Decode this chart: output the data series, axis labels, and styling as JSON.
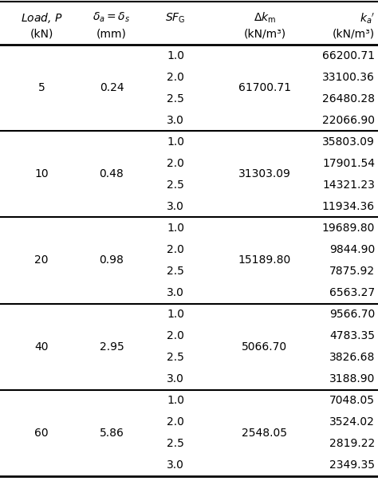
{
  "groups": [
    {
      "load": "5",
      "delta": "0.24",
      "delta_k": "61700.71",
      "sf_values": [
        "1.0",
        "2.0",
        "2.5",
        "3.0"
      ],
      "ka_values": [
        "66200.71",
        "33100.36",
        "26480.28",
        "22066.90"
      ]
    },
    {
      "load": "10",
      "delta": "0.48",
      "delta_k": "31303.09",
      "sf_values": [
        "1.0",
        "2.0",
        "2.5",
        "3.0"
      ],
      "ka_values": [
        "35803.09",
        "17901.54",
        "14321.23",
        "11934.36"
      ]
    },
    {
      "load": "20",
      "delta": "0.98",
      "delta_k": "15189.80",
      "sf_values": [
        "1.0",
        "2.0",
        "2.5",
        "3.0"
      ],
      "ka_values": [
        "19689.80",
        "9844.90",
        "7875.92",
        "6563.27"
      ]
    },
    {
      "load": "40",
      "delta": "2.95",
      "delta_k": "5066.70",
      "sf_values": [
        "1.0",
        "2.0",
        "2.5",
        "3.0"
      ],
      "ka_values": [
        "9566.70",
        "4783.35",
        "3826.68",
        "3188.90"
      ]
    },
    {
      "load": "60",
      "delta": "5.86",
      "delta_k": "2548.05",
      "sf_values": [
        "1.0",
        "2.0",
        "2.5",
        "3.0"
      ],
      "ka_values": [
        "7048.05",
        "3524.02",
        "2819.22",
        "2349.35"
      ]
    }
  ],
  "bg_color": "#ffffff",
  "text_color": "#000000",
  "font_size": 10,
  "header_font_size": 10,
  "fig_width": 4.74,
  "fig_height": 6.03,
  "dpi": 100
}
